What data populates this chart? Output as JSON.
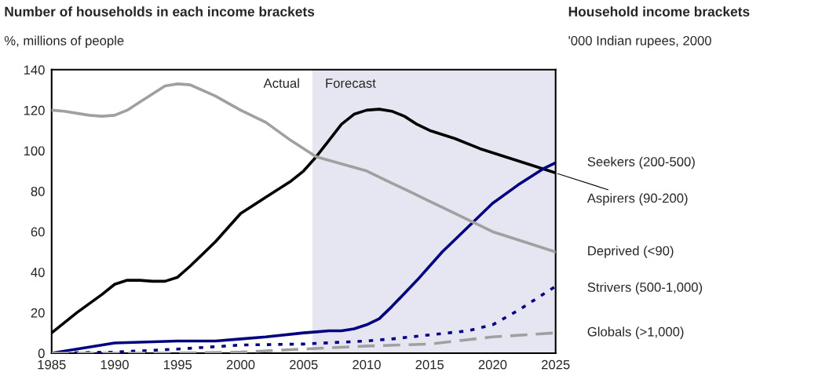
{
  "chart_data": {
    "type": "line",
    "title": "Number of households in each income brackets",
    "subtitle": "%, millions of people",
    "legend_title": "Household income brackets",
    "annotations": [
      "Actual",
      "'000 Indian rupees, 2000"
    ],
    "xlim": [
      1985,
      2025
    ],
    "xticks": [
      1985,
      1990,
      1995,
      2000,
      2005,
      2010,
      2015,
      2020,
      2025
    ],
    "ylim": [
      0,
      140
    ],
    "yticks": [
      0,
      20,
      40,
      60,
      80,
      100,
      120,
      140
    ],
    "bands": [
      {
        "axis": "x",
        "from": 2005.7,
        "to": 2025,
        "label": "Forecast",
        "color": "#e6e6f2"
      }
    ],
    "series": [
      {
        "name": "Aspirers (90-200)",
        "color": "#000000",
        "line_style": "solid",
        "x": [
          1985,
          1987,
          1989,
          1990,
          1991,
          1992,
          1993,
          1994,
          1995,
          1996,
          1998,
          1999,
          2000,
          2002,
          2004,
          2005,
          2006,
          2007,
          2008,
          2009,
          2010,
          2011,
          2012,
          2013,
          2014,
          2015,
          2017,
          2019,
          2021,
          2023,
          2025
        ],
        "values": [
          10,
          20,
          29,
          34,
          36,
          36,
          35.5,
          35.5,
          37.5,
          43,
          55,
          62,
          69,
          77,
          85,
          90,
          97,
          105,
          113,
          118,
          120,
          120.5,
          119.5,
          117,
          113,
          110,
          106,
          101,
          97,
          93,
          89
        ]
      },
      {
        "name": "Seekers (200-500)",
        "color": "#000080",
        "line_style": "solid",
        "x": [
          1985,
          1990,
          1995,
          1998,
          2000,
          2002,
          2005,
          2006,
          2007,
          2008,
          2009,
          2010,
          2011,
          2012,
          2014,
          2016,
          2018,
          2020,
          2022,
          2024,
          2025
        ],
        "values": [
          0,
          5,
          6,
          6,
          7,
          8,
          10,
          10.5,
          11,
          11,
          12,
          14,
          17,
          23,
          36,
          50,
          62,
          74,
          83,
          91,
          94
        ]
      },
      {
        "name": "Deprived (<90)",
        "color": "#a0a0a0",
        "line_style": "solid",
        "x": [
          1985,
          1986,
          1988,
          1989,
          1990,
          1991,
          1992,
          1993,
          1994,
          1995,
          1996,
          1998,
          2000,
          2002,
          2004,
          2006,
          2008,
          2010,
          2012,
          2014,
          2016,
          2018,
          2020,
          2022,
          2025
        ],
        "values": [
          120,
          119.5,
          117.5,
          117,
          117.5,
          120,
          124,
          128,
          132,
          133,
          132.5,
          127,
          120,
          114,
          105,
          97,
          93.5,
          90,
          84,
          78,
          72,
          66,
          60,
          56,
          50
        ]
      },
      {
        "name": "Strivers (500-1,000)",
        "color": "#000080",
        "line_style": "dotted",
        "x": [
          1985,
          1990,
          1995,
          2000,
          2005,
          2010,
          2012,
          2015,
          2018,
          2020,
          2022,
          2025
        ],
        "values": [
          0,
          0.5,
          2,
          4,
          4.5,
          6,
          7,
          9,
          11,
          14,
          21,
          33
        ]
      },
      {
        "name": "Globals (>1,000)",
        "color": "#a0a0a0",
        "line_style": "dashed",
        "x": [
          1985,
          1990,
          1995,
          2000,
          2005,
          2010,
          2015,
          2020,
          2025
        ],
        "values": [
          0,
          0,
          0,
          0.5,
          2,
          3.5,
          4.5,
          8,
          10
        ]
      }
    ]
  }
}
